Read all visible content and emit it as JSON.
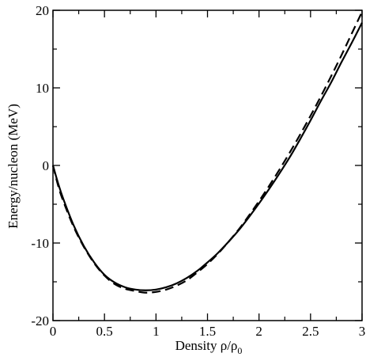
{
  "chart_data": {
    "type": "line",
    "xlabel": "Density ρ/ρ",
    "xlabel_sub": "0",
    "ylabel": "Energy/nucleon (MeV)",
    "xlim": [
      0,
      3
    ],
    "ylim": [
      -20,
      20
    ],
    "grid": false,
    "x_ticks": [
      0,
      0.5,
      1,
      1.5,
      2,
      2.5,
      3
    ],
    "x_tick_labels": [
      "0",
      "0.5",
      "1",
      "1.5",
      "2",
      "2.5",
      "3"
    ],
    "y_ticks": [
      -20,
      -10,
      0,
      10,
      20
    ],
    "y_tick_labels": [
      "-20",
      "-10",
      "0",
      "10",
      "20"
    ],
    "series": [
      {
        "style": "solid",
        "color": "#000000",
        "x": [
          0,
          0.05,
          0.1,
          0.2,
          0.3,
          0.4,
          0.5,
          0.6,
          0.7,
          0.8,
          0.9,
          1.0,
          1.1,
          1.2,
          1.3,
          1.4,
          1.5,
          1.6,
          1.7,
          1.8,
          1.9,
          2.0,
          2.1,
          2.2,
          2.3,
          2.4,
          2.5,
          2.6,
          2.7,
          2.8,
          2.9,
          3.0
        ],
        "y": [
          0,
          -2.3,
          -4.3,
          -7.7,
          -10.4,
          -12.5,
          -14.1,
          -15.1,
          -15.7,
          -16.0,
          -16.1,
          -16.0,
          -15.7,
          -15.2,
          -14.5,
          -13.6,
          -12.5,
          -11.3,
          -9.9,
          -8.4,
          -6.7,
          -4.9,
          -3.0,
          -1.0,
          1.1,
          3.4,
          5.8,
          8.3,
          10.7,
          13.3,
          15.8,
          18.4
        ]
      },
      {
        "style": "dashed",
        "color": "#000000",
        "x": [
          0,
          0.05,
          0.1,
          0.2,
          0.3,
          0.4,
          0.5,
          0.6,
          0.7,
          0.8,
          0.9,
          1.0,
          1.1,
          1.2,
          1.3,
          1.4,
          1.5,
          1.6,
          1.7,
          1.8,
          1.9,
          2.0,
          2.1,
          2.2,
          2.3,
          2.4,
          2.5,
          2.6,
          2.7,
          2.8,
          2.9,
          3.0
        ],
        "y": [
          0,
          -2.6,
          -4.6,
          -7.9,
          -10.5,
          -12.6,
          -14.2,
          -15.3,
          -15.9,
          -16.2,
          -16.4,
          -16.3,
          -16.0,
          -15.5,
          -14.8,
          -13.8,
          -12.7,
          -11.4,
          -9.9,
          -8.3,
          -6.5,
          -4.6,
          -2.6,
          -0.5,
          1.7,
          4.0,
          6.4,
          8.9,
          11.5,
          14.2,
          17.0,
          19.8
        ]
      }
    ]
  }
}
